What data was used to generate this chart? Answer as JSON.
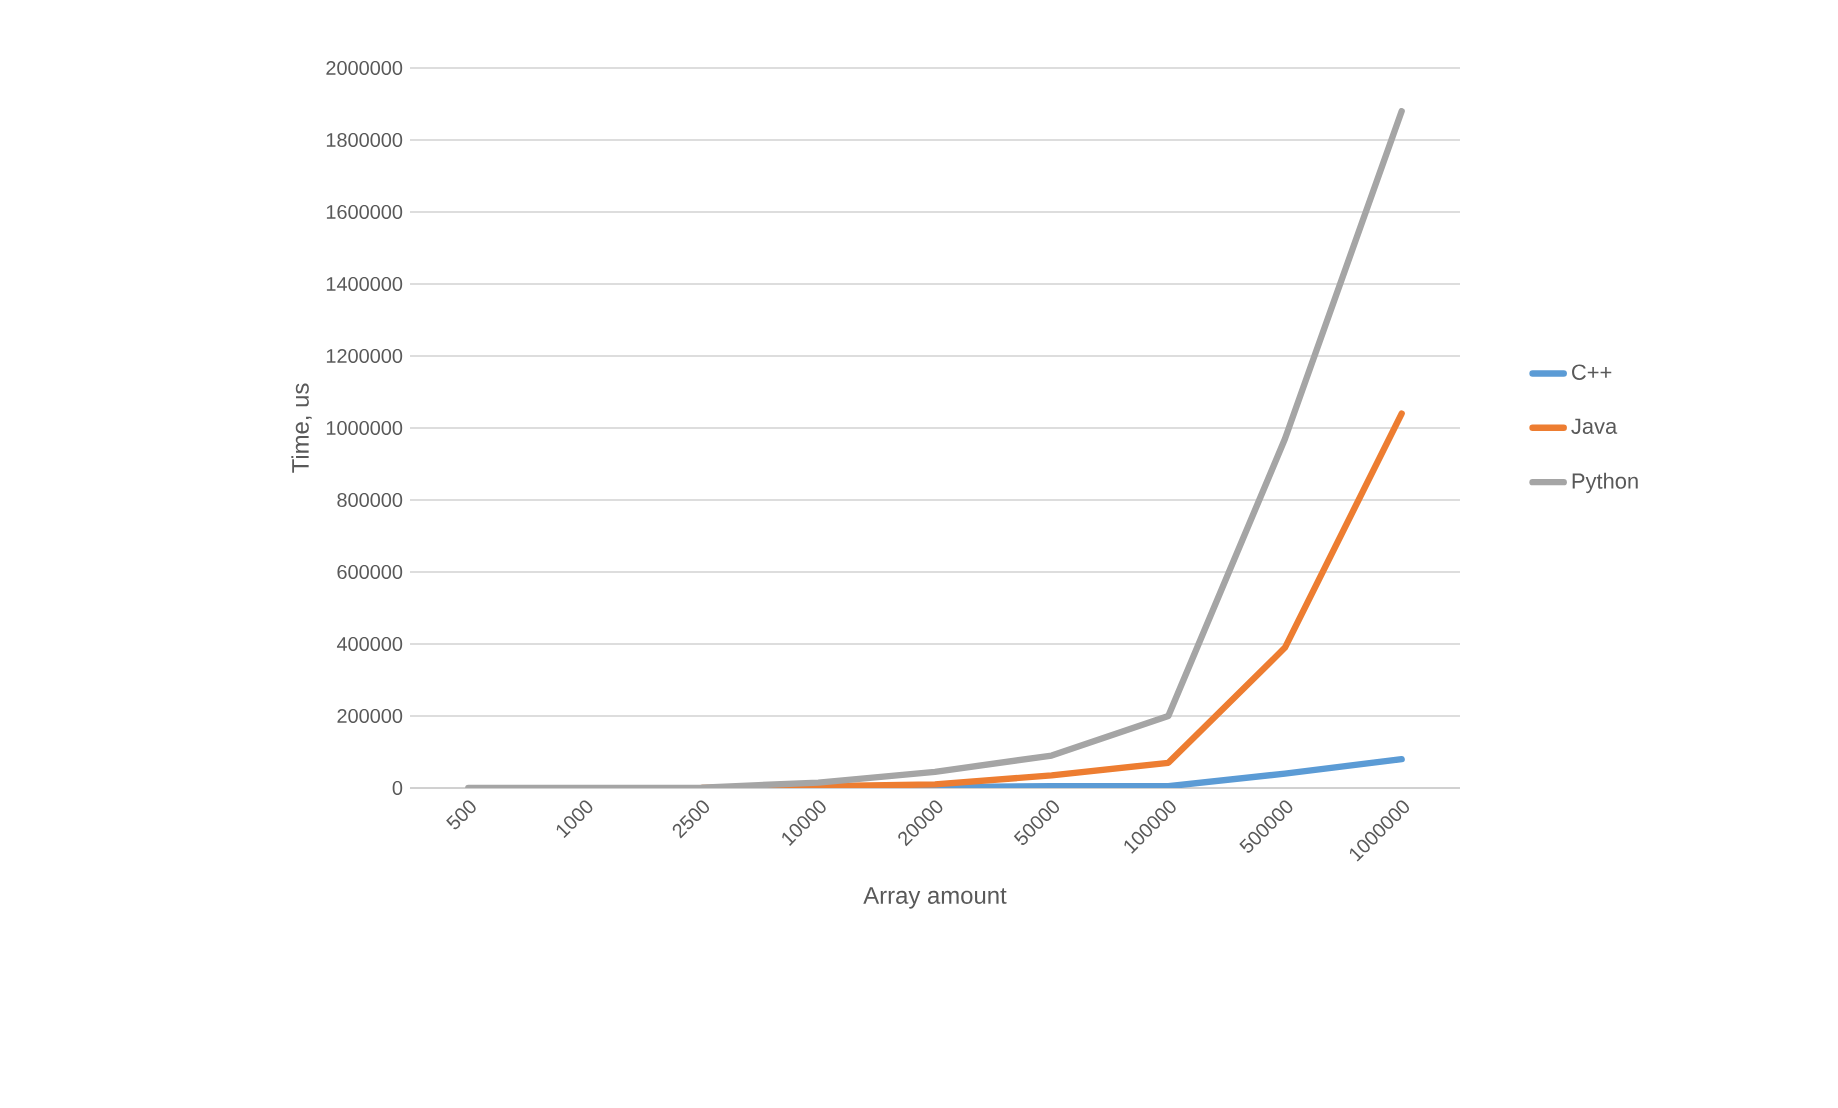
{
  "chart_data": {
    "type": "line",
    "xlabel": "Array amount",
    "ylabel": "Time, us",
    "categories": [
      "500",
      "1000",
      "2500",
      "10000",
      "20000",
      "50000",
      "100000",
      "500000",
      "1000000"
    ],
    "series": [
      {
        "name": "C++",
        "color": "#5b9bd5",
        "values": [
          null,
          null,
          null,
          1000,
          2000,
          5000,
          5000,
          40000,
          80000
        ]
      },
      {
        "name": "Java",
        "color": "#ed7d31",
        "values": [
          null,
          null,
          0,
          5000,
          10000,
          35000,
          70000,
          390000,
          1040000
        ]
      },
      {
        "name": "Python",
        "color": "#a5a5a5",
        "values": [
          0,
          0,
          1000,
          15000,
          45000,
          90000,
          200000,
          970000,
          1880000
        ]
      }
    ],
    "ylim": [
      0,
      2000000
    ],
    "yticks": [
      0,
      200000,
      400000,
      600000,
      800000,
      1000000,
      1200000,
      1400000,
      1600000,
      1800000,
      2000000
    ],
    "grid": "y",
    "legend": "right",
    "marker": "none",
    "line_style": "solid"
  }
}
